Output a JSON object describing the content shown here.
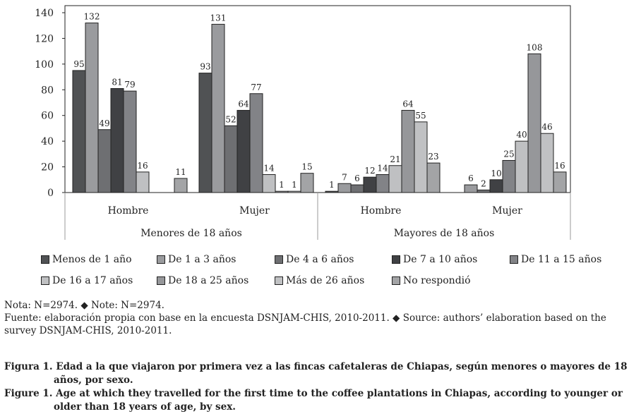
{
  "chart_data": {
    "type": "bar",
    "title": "",
    "ylim": [
      0,
      140
    ],
    "yticks": [
      0,
      20,
      40,
      60,
      80,
      100,
      120,
      140
    ],
    "groups": [
      {
        "name": "Menores de 18 años",
        "subgroups": [
          "Hombre",
          "Mujer"
        ]
      },
      {
        "name": "Mayores de 18 años",
        "subgroups": [
          "Hombre",
          "Mujer"
        ]
      }
    ],
    "categories": [
      "Menores de 18 años - Hombre",
      "Menores de 18 años - Mujer",
      "Mayores de 18 años - Hombre",
      "Mayores de 18 años - Mujer"
    ],
    "series": [
      {
        "name": "Menos de 1 año",
        "color": "#505254",
        "values": [
          95,
          93,
          1,
          0
        ]
      },
      {
        "name": "De 1 a 3 años",
        "color": "#9a9b9e",
        "values": [
          132,
          131,
          7,
          6
        ]
      },
      {
        "name": "De 4 a 6 años",
        "color": "#6e6f72",
        "values": [
          49,
          52,
          6,
          2
        ]
      },
      {
        "name": "De 7 a 10 años",
        "color": "#404144",
        "values": [
          81,
          64,
          12,
          10
        ]
      },
      {
        "name": "De 11 a 15 años",
        "color": "#828387",
        "values": [
          79,
          77,
          14,
          25
        ]
      },
      {
        "name": "De 16 a 17 años",
        "color": "#bfc0c2",
        "values": [
          16,
          14,
          21,
          40
        ]
      },
      {
        "name": "De 18 a 25 años",
        "color": "#96979a",
        "values": [
          0,
          1,
          64,
          108
        ]
      },
      {
        "name": "Más de 26 años",
        "color": "#c0c1c3",
        "values": [
          0,
          1,
          55,
          46
        ]
      },
      {
        "name": "No respondió",
        "color": "#a3a4a6",
        "values": [
          11,
          15,
          23,
          16
        ]
      }
    ],
    "legend": "bottom"
  },
  "notes": [
    "Nota: N=2974. ◆ Note: N=2974.",
    "Fuente: elaboración propia con base en la encuesta DSNJAM-CHIS, 2010-2011. ◆ Source: authors’ elaboration based on the survey DSNJAM-CHIS, 2010-2011."
  ],
  "captions": [
    "Figura 1. Edad a la que viajaron por primera vez a las fincas cafetaleras de Chiapas, según menores o mayores de 18 años, por sexo.",
    "Figure 1. Age at which they travelled for the first time to the coffee plantations in Chiapas, according to younger or older than 18 years of age, by sex."
  ]
}
